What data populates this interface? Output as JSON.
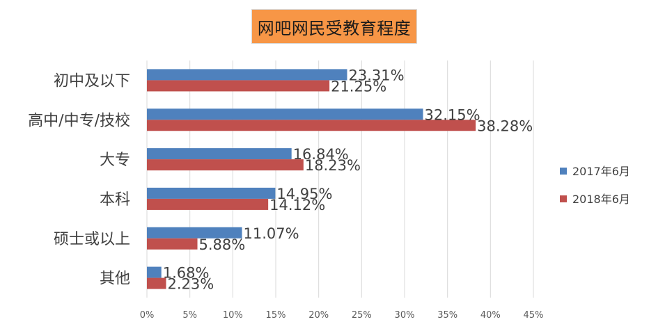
{
  "chart_data": {
    "type": "bar",
    "orientation": "horizontal",
    "title": "网吧网民受教育程度",
    "categories": [
      "初中及以下",
      "高中/中专/技校",
      "大专",
      "本科",
      "硕士或以上",
      "其他"
    ],
    "series": [
      {
        "name": "2017年6月",
        "color": "#4f81bd",
        "values": [
          23.31,
          32.15,
          16.84,
          14.95,
          11.07,
          1.68
        ],
        "labels": [
          "23.31%",
          "32.15%",
          "16.84%",
          "14.95%",
          "11.07%",
          "1.68%"
        ]
      },
      {
        "name": "2018年6月",
        "color": "#c0504d",
        "values": [
          21.25,
          38.28,
          18.23,
          14.12,
          5.88,
          2.23
        ],
        "labels": [
          "21.25%",
          "38.28%",
          "18.23%",
          "14.12%",
          "5.88%",
          "2.23%"
        ]
      }
    ],
    "xlim": [
      0,
      45
    ],
    "xticks": [
      0,
      5,
      10,
      15,
      20,
      25,
      30,
      35,
      40,
      45
    ],
    "xtick_labels": [
      "0%",
      "5%",
      "10%",
      "15%",
      "20%",
      "25%",
      "30%",
      "35%",
      "40%",
      "45%"
    ],
    "grid": true,
    "legend_position": "right",
    "title_background": "#f79646"
  }
}
